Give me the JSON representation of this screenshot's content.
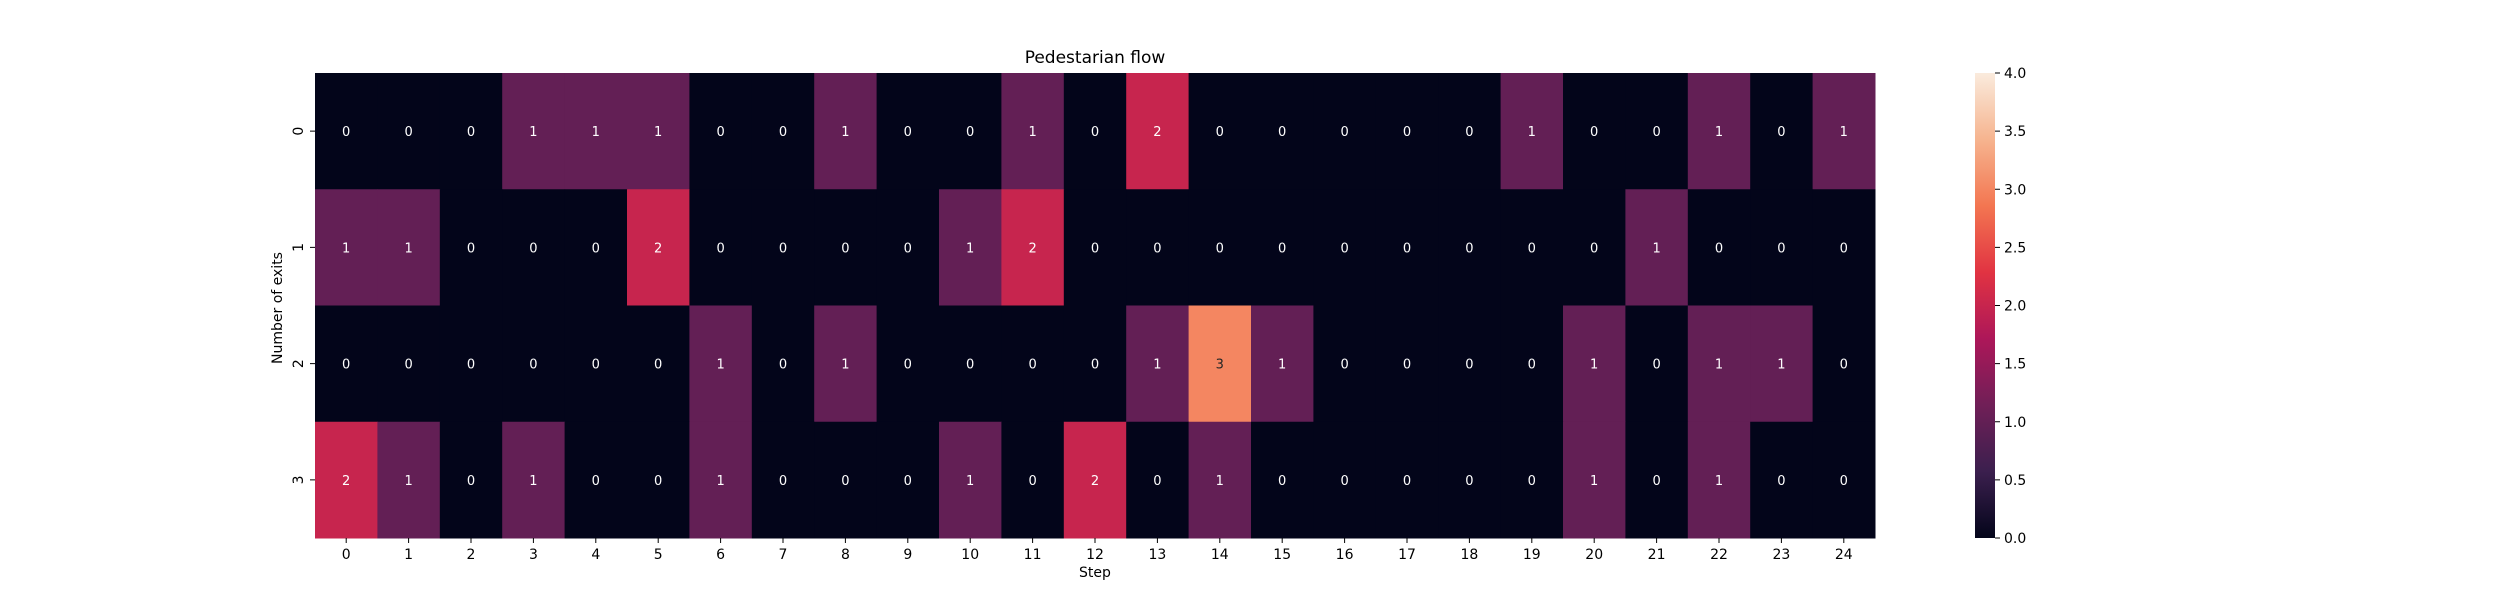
{
  "chart_data": {
    "type": "heatmap",
    "title": "Pedestarian flow",
    "xlabel": "Step",
    "ylabel": "Number of exits",
    "x_categories": [
      "0",
      "1",
      "2",
      "3",
      "4",
      "5",
      "6",
      "7",
      "8",
      "9",
      "10",
      "11",
      "12",
      "13",
      "14",
      "15",
      "16",
      "17",
      "18",
      "19",
      "20",
      "21",
      "22",
      "23",
      "24"
    ],
    "y_categories": [
      "0",
      "1",
      "2",
      "3"
    ],
    "values": [
      [
        0,
        0,
        0,
        1,
        1,
        1,
        0,
        0,
        1,
        0,
        0,
        1,
        0,
        2,
        0,
        0,
        0,
        0,
        0,
        1,
        0,
        0,
        1,
        0,
        1
      ],
      [
        1,
        1,
        0,
        0,
        0,
        2,
        0,
        0,
        0,
        0,
        1,
        2,
        0,
        0,
        0,
        0,
        0,
        0,
        0,
        0,
        0,
        1,
        0,
        0,
        0
      ],
      [
        0,
        0,
        0,
        0,
        0,
        0,
        1,
        0,
        1,
        0,
        0,
        0,
        0,
        1,
        3,
        1,
        0,
        0,
        0,
        0,
        1,
        0,
        1,
        1,
        0
      ],
      [
        2,
        1,
        0,
        1,
        0,
        0,
        1,
        0,
        0,
        0,
        1,
        0,
        2,
        0,
        1,
        0,
        0,
        0,
        0,
        0,
        1,
        0,
        1,
        0,
        0
      ]
    ],
    "colorbar": {
      "min": 0,
      "max": 4,
      "ticks": [
        "0.0",
        "0.5",
        "1.0",
        "1.5",
        "2.0",
        "2.5",
        "3.0",
        "3.5",
        "4.0"
      ],
      "colormap": "rocket",
      "stops": [
        "#03051a",
        "#3b1f4e",
        "#701f57",
        "#ad1759",
        "#e13342",
        "#f37651",
        "#f6b48f",
        "#faebdd"
      ]
    },
    "grid": false,
    "annotations": true
  }
}
